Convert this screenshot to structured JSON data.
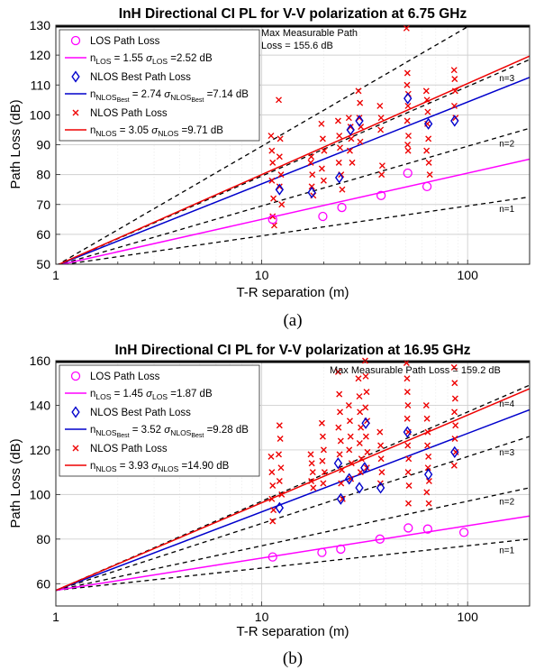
{
  "chart_data": [
    {
      "type": "scatter",
      "title": "InH Directional CI PL for V-V polarization at 6.75 GHz",
      "xlabel": "T-R separation (m)",
      "ylabel": "Path Loss (dB)",
      "xscale": "log",
      "xlim": [
        1,
        200
      ],
      "ylim": [
        50,
        130
      ],
      "xticks": [
        1,
        10,
        100
      ],
      "yticks": [
        50,
        60,
        70,
        80,
        90,
        100,
        110,
        120,
        130
      ],
      "grid": true,
      "legend_position": "top-left",
      "caption": "(a)",
      "fspl_1m": 49.5,
      "n_lines": [
        {
          "n": 1,
          "label": "n=1"
        },
        {
          "n": 2,
          "label": "n=2"
        },
        {
          "n": 3,
          "label": "n=3"
        },
        {
          "n": 4,
          "label": ""
        }
      ],
      "max_path_loss": {
        "value": 155.6,
        "label_line1": "Max Measurable Path",
        "label_line2": "Loss = 155.6 dB"
      },
      "series": [
        {
          "name": "LOS Path Loss",
          "marker": "circle",
          "color": "#ff00ff",
          "fit": {
            "n": 1.55,
            "sigma": 2.52,
            "n_label": "n",
            "n_sub": "LOS",
            "sigma_sub": "LOS",
            "n_text": " = 1.55 ",
            "sigma_text": " =2.52 dB"
          },
          "points": [
            [
              11.3,
              65
            ],
            [
              19.8,
              66
            ],
            [
              24.5,
              69
            ],
            [
              38,
              73
            ],
            [
              51.2,
              80.5
            ],
            [
              63.5,
              76
            ]
          ]
        },
        {
          "name": "NLOS Best Path Loss",
          "marker": "diamond",
          "color": "#0000cc",
          "fit": {
            "n": 2.74,
            "sigma": 7.14,
            "n_label": "n",
            "n_sub": "NLOS",
            "n_subsub": "Best",
            "sigma_sub": "NLOS",
            "sigma_subsub": "Best",
            "n_text": " = 2.74 ",
            "sigma_text": " =7.14 dB"
          },
          "points": [
            [
              12.2,
              75
            ],
            [
              17.5,
              74
            ],
            [
              23.8,
              79
            ],
            [
              27,
              95
            ],
            [
              29.8,
              98
            ],
            [
              51.2,
              105.5
            ],
            [
              64.5,
              97
            ],
            [
              86.5,
              98
            ]
          ]
        },
        {
          "name": "NLOS Path Loss",
          "marker": "cross",
          "color": "#ee0000",
          "fit": {
            "n": 3.05,
            "sigma": 9.71,
            "n_label": "n",
            "n_sub": "NLOS",
            "sigma_sub": "NLOS",
            "n_text": " = 3.05 ",
            "sigma_text": " =9.71 dB"
          },
          "points": [
            [
              11.1,
              93
            ],
            [
              11.2,
              88
            ],
            [
              11.3,
              84
            ],
            [
              11.2,
              78
            ],
            [
              11.4,
              72
            ],
            [
              11.3,
              66
            ],
            [
              11.5,
              63
            ],
            [
              12.1,
              105
            ],
            [
              12.3,
              92
            ],
            [
              12.2,
              86
            ],
            [
              12.4,
              80
            ],
            [
              12.2,
              76
            ],
            [
              12.5,
              70
            ],
            [
              17.3,
              84
            ],
            [
              17.6,
              80
            ],
            [
              17.5,
              76
            ],
            [
              17.8,
              73
            ],
            [
              17.4,
              86
            ],
            [
              19.5,
              97
            ],
            [
              19.8,
              92
            ],
            [
              20.1,
              88
            ],
            [
              19.6,
              82
            ],
            [
              20,
              78
            ],
            [
              23.5,
              98
            ],
            [
              23.8,
              93
            ],
            [
              24,
              89
            ],
            [
              23.7,
              84
            ],
            [
              24.3,
              80
            ],
            [
              24.6,
              75
            ],
            [
              26.5,
              99
            ],
            [
              27,
              96
            ],
            [
              27.2,
              92
            ],
            [
              26.8,
              88
            ],
            [
              27.5,
              84
            ],
            [
              29.5,
              108
            ],
            [
              30,
              104
            ],
            [
              29.8,
              99
            ],
            [
              30.3,
              96
            ],
            [
              30.1,
              91
            ],
            [
              37.5,
              103
            ],
            [
              38,
              99
            ],
            [
              37.8,
              95
            ],
            [
              38.5,
              83
            ],
            [
              38.2,
              80
            ],
            [
              50.5,
              129
            ],
            [
              51,
              114
            ],
            [
              50.8,
              110
            ],
            [
              51.5,
              107
            ],
            [
              51.3,
              103
            ],
            [
              50.9,
              98
            ],
            [
              51.6,
              93
            ],
            [
              51.1,
              90
            ],
            [
              51.4,
              88
            ],
            [
              63,
              108
            ],
            [
              63.5,
              105
            ],
            [
              64,
              101
            ],
            [
              63.8,
              97
            ],
            [
              64.5,
              92
            ],
            [
              63.2,
              88
            ],
            [
              64.8,
              84
            ],
            [
              65.5,
              80
            ],
            [
              86,
              115
            ],
            [
              86.5,
              112
            ],
            [
              87,
              108
            ],
            [
              86.2,
              103
            ],
            [
              87.4,
              99
            ]
          ]
        }
      ]
    },
    {
      "type": "scatter",
      "title": "InH Directional CI PL for V-V polarization at 16.95 GHz",
      "xlabel": "T-R separation (m)",
      "ylabel": "Path Loss (dB)",
      "xscale": "log",
      "xlim": [
        1,
        200
      ],
      "ylim": [
        50,
        160
      ],
      "xticks": [
        1,
        10,
        100
      ],
      "yticks": [
        60,
        80,
        100,
        120,
        140,
        160
      ],
      "grid": true,
      "legend_position": "top-left",
      "caption": "(b)",
      "fspl_1m": 57,
      "n_lines": [
        {
          "n": 1,
          "label": "n=1"
        },
        {
          "n": 2,
          "label": "n=2"
        },
        {
          "n": 3,
          "label": "n=3"
        },
        {
          "n": 4,
          "label": "n=4"
        }
      ],
      "max_path_loss": {
        "value": 159.2,
        "label_line1": "Max Measurable Path Loss = 159.2 dB",
        "label_line2": ""
      },
      "series": [
        {
          "name": "LOS Path Loss",
          "marker": "circle",
          "color": "#ff00ff",
          "fit": {
            "n": 1.45,
            "sigma": 1.87,
            "n_label": "n",
            "n_sub": "LOS",
            "sigma_sub": "LOS",
            "n_text": " = 1.45 ",
            "sigma_text": " =1.87 dB"
          },
          "points": [
            [
              11.3,
              72
            ],
            [
              19.6,
              74
            ],
            [
              24.2,
              75.5
            ],
            [
              37.5,
              80
            ],
            [
              51.5,
              85
            ],
            [
              64,
              84.5
            ],
            [
              96,
              83
            ]
          ]
        },
        {
          "name": "NLOS Best Path Loss",
          "marker": "diamond",
          "color": "#0000cc",
          "fit": {
            "n": 3.52,
            "sigma": 9.28,
            "n_label": "n",
            "n_sub": "NLOS",
            "n_subsub": "Best",
            "sigma_sub": "NLOS",
            "sigma_subsub": "Best",
            "n_text": " = 3.52 ",
            "sigma_text": " =9.28 dB"
          },
          "points": [
            [
              12.2,
              94
            ],
            [
              23.5,
              114
            ],
            [
              24.2,
              98
            ],
            [
              26.6,
              107
            ],
            [
              29.8,
              103
            ],
            [
              31.6,
              112
            ],
            [
              32,
              132
            ],
            [
              37.8,
              103
            ],
            [
              51,
              128
            ],
            [
              64.5,
              109
            ],
            [
              86.5,
              119
            ]
          ]
        },
        {
          "name": "NLOS Path Loss",
          "marker": "cross",
          "color": "#ee0000",
          "fit": {
            "n": 3.93,
            "sigma": 14.9,
            "n_label": "n",
            "n_sub": "NLOS",
            "sigma_sub": "NLOS",
            "n_text": " = 3.93 ",
            "sigma_text": " =14.90 dB"
          },
          "points": [
            [
              11.1,
              117
            ],
            [
              11.2,
              110
            ],
            [
              11.3,
              104
            ],
            [
              11.2,
              98
            ],
            [
              11.4,
              93
            ],
            [
              11.3,
              88
            ],
            [
              12.2,
              131
            ],
            [
              12.3,
              125
            ],
            [
              12.1,
              118
            ],
            [
              12.4,
              112
            ],
            [
              12.2,
              106
            ],
            [
              12.5,
              100
            ],
            [
              17.3,
              118
            ],
            [
              17.5,
              114
            ],
            [
              17.7,
              110
            ],
            [
              17.4,
              106
            ],
            [
              17.8,
              103
            ],
            [
              19.6,
              132
            ],
            [
              19.8,
              126
            ],
            [
              20,
              120
            ],
            [
              19.7,
              115
            ],
            [
              20.2,
              110
            ],
            [
              19.9,
              105
            ],
            [
              23.5,
              155
            ],
            [
              23.8,
              145
            ],
            [
              24,
              137
            ],
            [
              23.6,
              130
            ],
            [
              24.2,
              124
            ],
            [
              23.9,
              118
            ],
            [
              24.5,
              111
            ],
            [
              24.3,
              105
            ],
            [
              24.7,
              98
            ],
            [
              26.5,
              140
            ],
            [
              26.8,
              133
            ],
            [
              27,
              126
            ],
            [
              26.6,
              120
            ],
            [
              27.3,
              114
            ],
            [
              27.1,
              107
            ],
            [
              29.5,
              152
            ],
            [
              29.8,
              144
            ],
            [
              30,
              137
            ],
            [
              30.3,
              130
            ],
            [
              29.9,
              123
            ],
            [
              30.5,
              116
            ],
            [
              30.2,
              110
            ],
            [
              31.8,
              160
            ],
            [
              32,
              153
            ],
            [
              32.3,
              146
            ],
            [
              31.9,
              139
            ],
            [
              32.5,
              133
            ],
            [
              32.1,
              126
            ],
            [
              32.6,
              119
            ],
            [
              32.4,
              112
            ],
            [
              37.5,
              128
            ],
            [
              37.8,
              122
            ],
            [
              38,
              116
            ],
            [
              38.3,
              110
            ],
            [
              37.7,
              105
            ],
            [
              50.5,
              159
            ],
            [
              50.8,
              152
            ],
            [
              51,
              146
            ],
            [
              51.3,
              140
            ],
            [
              50.9,
              134
            ],
            [
              51.5,
              128
            ],
            [
              51.2,
              122
            ],
            [
              51.7,
              116
            ],
            [
              51.4,
              110
            ],
            [
              51.9,
              104
            ],
            [
              51.6,
              96
            ],
            [
              63,
              140
            ],
            [
              63.5,
              134
            ],
            [
              64,
              128
            ],
            [
              63.8,
              122
            ],
            [
              64.5,
              117
            ],
            [
              64.2,
              112
            ],
            [
              65,
              106
            ],
            [
              63.3,
              101
            ],
            [
              64.8,
              96
            ],
            [
              86,
              157
            ],
            [
              86.5,
              150
            ],
            [
              87,
              143
            ],
            [
              86.3,
              137
            ],
            [
              87.3,
              131
            ],
            [
              86.7,
              125
            ],
            [
              87.6,
              119
            ],
            [
              86.1,
              113
            ]
          ]
        }
      ]
    }
  ]
}
